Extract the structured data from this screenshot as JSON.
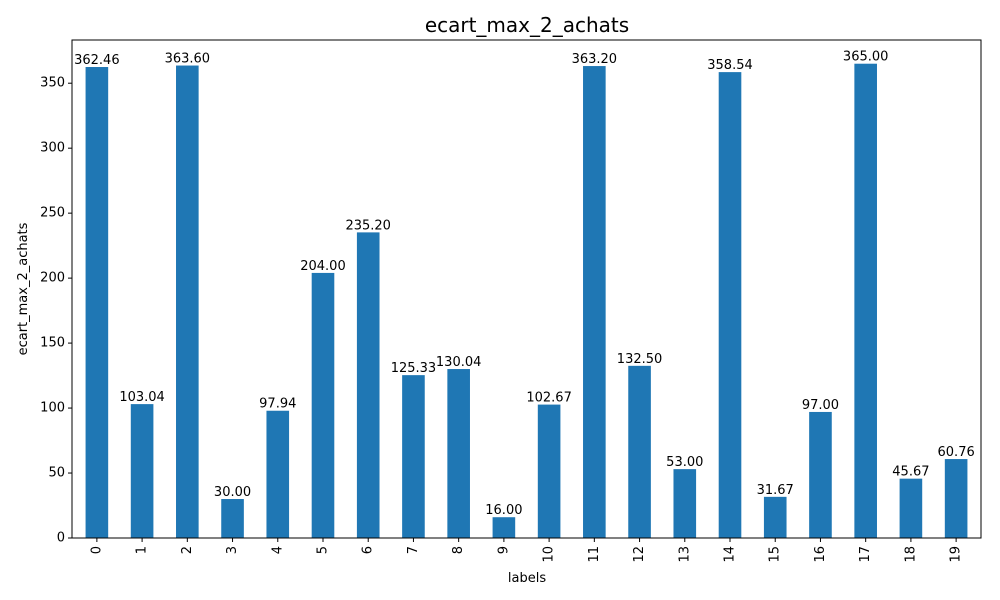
{
  "chart_data": {
    "type": "bar",
    "title": "ecart_max_2_achats",
    "xlabel": "labels",
    "ylabel": "ecart_max_2_achats",
    "categories": [
      "0",
      "1",
      "2",
      "3",
      "4",
      "5",
      "6",
      "7",
      "8",
      "9",
      "10",
      "11",
      "12",
      "13",
      "14",
      "15",
      "16",
      "17",
      "18",
      "19"
    ],
    "values": [
      362.46,
      103.04,
      363.6,
      30.0,
      97.94,
      204.0,
      235.2,
      125.33,
      130.04,
      16.0,
      102.67,
      363.2,
      132.5,
      53.0,
      358.54,
      31.67,
      97.0,
      365.0,
      45.67,
      60.76
    ],
    "data_labels": [
      "362.46",
      "103.04",
      "363.60",
      "30.00",
      "97.94",
      "204.00",
      "235.20",
      "125.33",
      "130.04",
      "16.00",
      "102.67",
      "363.20",
      "132.50",
      "53.00",
      "358.54",
      "31.67",
      "97.00",
      "365.00",
      "45.67",
      "60.76"
    ],
    "ylim": [
      0,
      383.25
    ],
    "yticks": [
      0,
      50,
      100,
      150,
      200,
      250,
      300,
      350
    ],
    "ytick_labels": [
      "0",
      "50",
      "100",
      "150",
      "200",
      "250",
      "300",
      "350"
    ],
    "grid": false,
    "bar_color": "#1f77b4"
  }
}
